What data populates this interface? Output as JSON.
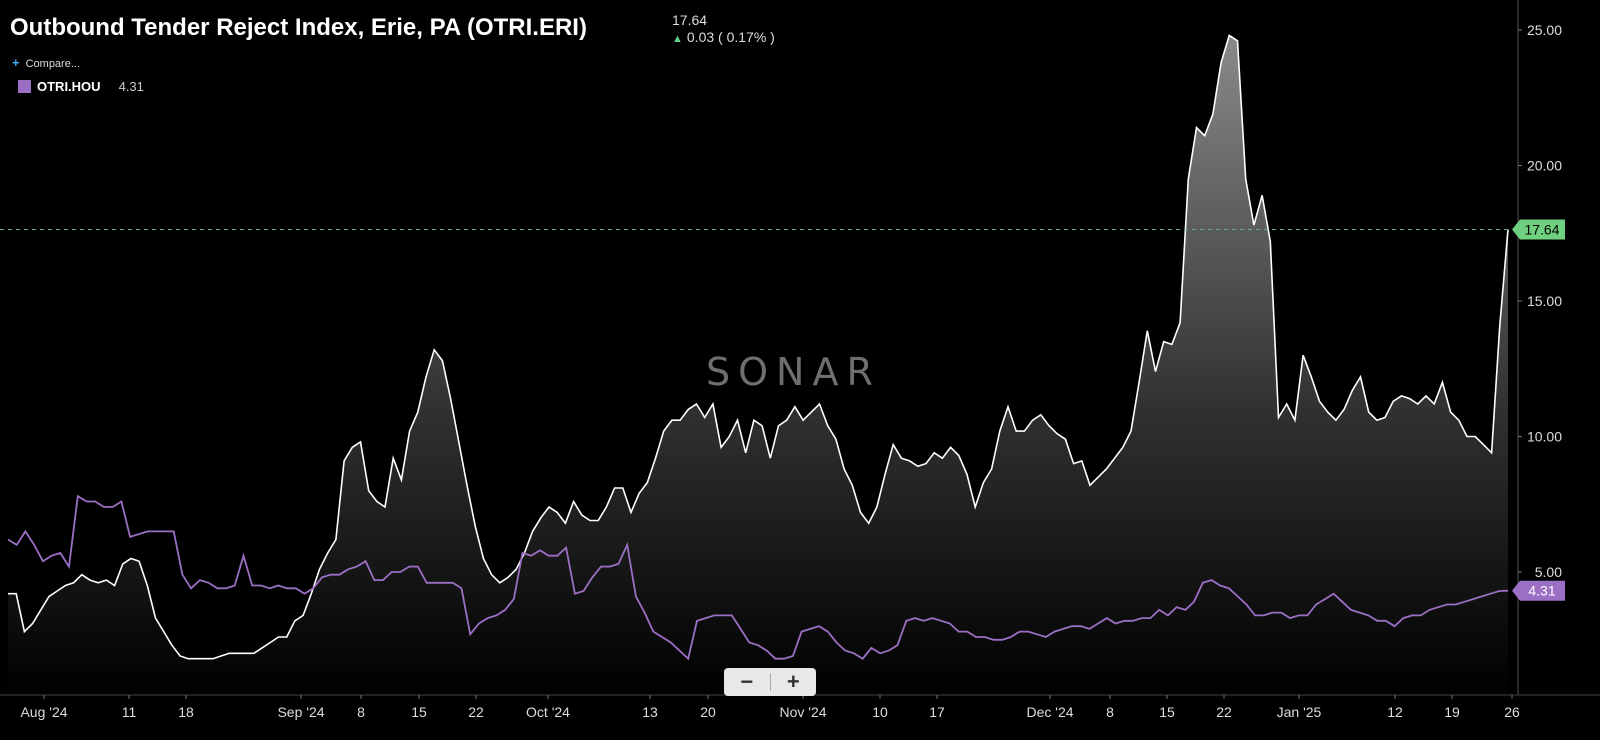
{
  "header": {
    "title": "Outbound Tender Reject Index, Erie, PA (OTRI.ERI)",
    "last_price": "17.64",
    "change": "0.03 ( 0.17% )",
    "compare_label": "Compare...",
    "watermark": "SONAR"
  },
  "legend": [
    {
      "name": "OTRI.HOU",
      "value": "4.31",
      "color": "#9b6fc4"
    }
  ],
  "icons": {
    "compare": "plus-icon",
    "change": "up-arrow-icon",
    "zoom_out": "minus-icon",
    "zoom_in": "plus-icon"
  },
  "chart_data": {
    "type": "area",
    "title": "Outbound Tender Reject Index, Erie, PA (OTRI.ERI)",
    "x_ticks": [
      "Aug '24",
      "11",
      "18",
      "Sep '24",
      "8",
      "15",
      "22",
      "Oct '24",
      "13",
      "20",
      "Nov '24",
      "10",
      "17",
      "Dec '24",
      "8",
      "15",
      "22",
      "Jan '25",
      "12",
      "19",
      "26"
    ],
    "y_ticks": [
      "5.00",
      "10.00",
      "15.00",
      "20.00",
      "25.00"
    ],
    "ylim": [
      0.6,
      25.8
    ],
    "grid": false,
    "last_values": {
      "OTRI.ERI": "17.64",
      "OTRI.HOU": "4.31"
    },
    "series": [
      {
        "name": "OTRI.ERI",
        "color": "#ffffff",
        "values": [
          4.2,
          4.2,
          2.8,
          3.1,
          3.6,
          4.1,
          4.3,
          4.5,
          4.6,
          4.9,
          4.7,
          4.6,
          4.7,
          4.5,
          5.3,
          5.5,
          5.4,
          4.5,
          3.3,
          2.8,
          2.3,
          1.9,
          1.8,
          1.8,
          1.8,
          1.8,
          1.9,
          2.0,
          2.0,
          2.0,
          2.0,
          2.2,
          2.4,
          2.6,
          2.6,
          3.2,
          3.4,
          4.2,
          5.1,
          5.7,
          6.2,
          9.1,
          9.6,
          9.8,
          8.0,
          7.6,
          7.4,
          9.2,
          8.4,
          10.2,
          10.9,
          12.2,
          13.2,
          12.8,
          11.4,
          9.8,
          8.2,
          6.7,
          5.5,
          4.9,
          4.6,
          4.8,
          5.1,
          5.7,
          6.5,
          7.0,
          7.4,
          7.2,
          6.8,
          7.6,
          7.1,
          6.9,
          6.9,
          7.4,
          8.1,
          8.1,
          7.2,
          7.9,
          8.3,
          9.2,
          10.2,
          10.6,
          10.6,
          11.0,
          11.2,
          10.7,
          11.2,
          9.6,
          10.0,
          10.6,
          9.4,
          10.6,
          10.4,
          9.2,
          10.4,
          10.6,
          11.1,
          10.6,
          10.9,
          11.2,
          10.4,
          9.9,
          8.8,
          8.2,
          7.2,
          6.8,
          7.4,
          8.6,
          9.7,
          9.2,
          9.1,
          8.9,
          9.0,
          9.4,
          9.2,
          9.6,
          9.3,
          8.6,
          7.4,
          8.3,
          8.8,
          10.2,
          11.1,
          10.2,
          10.2,
          10.6,
          10.8,
          10.4,
          10.1,
          9.9,
          9.0,
          9.1,
          8.2,
          8.5,
          8.8,
          9.2,
          9.6,
          10.2,
          12.0,
          13.9,
          12.4,
          13.5,
          13.4,
          14.2,
          19.5,
          21.4,
          21.1,
          21.9,
          23.8,
          24.8,
          24.6,
          19.5,
          17.8,
          18.9,
          17.2,
          10.7,
          11.2,
          10.6,
          13.0,
          12.2,
          11.3,
          10.9,
          10.6,
          11.0,
          11.7,
          12.2,
          10.9,
          10.6,
          10.7,
          11.3,
          11.5,
          11.4,
          11.2,
          11.5,
          11.2,
          12.0,
          10.9,
          10.6,
          10.0,
          10.0,
          9.7,
          9.4,
          14.1,
          17.64
        ]
      },
      {
        "name": "OTRI.HOU",
        "color": "#9b6fc4",
        "values": [
          6.2,
          6.0,
          6.5,
          6.0,
          5.4,
          5.6,
          5.7,
          5.2,
          7.8,
          7.6,
          7.6,
          7.4,
          7.4,
          7.6,
          6.3,
          6.4,
          6.5,
          6.5,
          6.5,
          6.5,
          4.9,
          4.4,
          4.7,
          4.6,
          4.4,
          4.4,
          4.5,
          5.6,
          4.5,
          4.5,
          4.4,
          4.5,
          4.4,
          4.4,
          4.2,
          4.4,
          4.8,
          4.9,
          4.9,
          5.1,
          5.2,
          5.4,
          4.7,
          4.7,
          5.0,
          5.0,
          5.2,
          5.2,
          4.6,
          4.6,
          4.6,
          4.6,
          4.4,
          2.7,
          3.1,
          3.3,
          3.4,
          3.6,
          4.0,
          5.7,
          5.6,
          5.8,
          5.6,
          5.6,
          5.9,
          4.2,
          4.3,
          4.8,
          5.2,
          5.2,
          5.3,
          6.0,
          4.1,
          3.5,
          2.8,
          2.6,
          2.4,
          2.1,
          1.8,
          3.2,
          3.3,
          3.4,
          3.4,
          3.4,
          2.9,
          2.4,
          2.3,
          2.1,
          1.8,
          1.8,
          1.9,
          2.8,
          2.9,
          3.0,
          2.8,
          2.4,
          2.1,
          2.0,
          1.8,
          2.2,
          2.0,
          2.1,
          2.3,
          3.2,
          3.3,
          3.2,
          3.3,
          3.2,
          3.1,
          2.8,
          2.8,
          2.6,
          2.6,
          2.5,
          2.5,
          2.6,
          2.8,
          2.8,
          2.7,
          2.6,
          2.8,
          2.9,
          3.0,
          3.0,
          2.9,
          3.1,
          3.3,
          3.1,
          3.2,
          3.2,
          3.3,
          3.3,
          3.6,
          3.4,
          3.7,
          3.6,
          3.9,
          4.6,
          4.7,
          4.5,
          4.4,
          4.1,
          3.8,
          3.4,
          3.4,
          3.5,
          3.5,
          3.3,
          3.4,
          3.4,
          3.8,
          4.0,
          4.2,
          3.9,
          3.6,
          3.5,
          3.4,
          3.2,
          3.2,
          3.0,
          3.3,
          3.4,
          3.4,
          3.6,
          3.7,
          3.8,
          3.8,
          3.9,
          4.0,
          4.1,
          4.2,
          4.3,
          4.31
        ]
      }
    ]
  }
}
